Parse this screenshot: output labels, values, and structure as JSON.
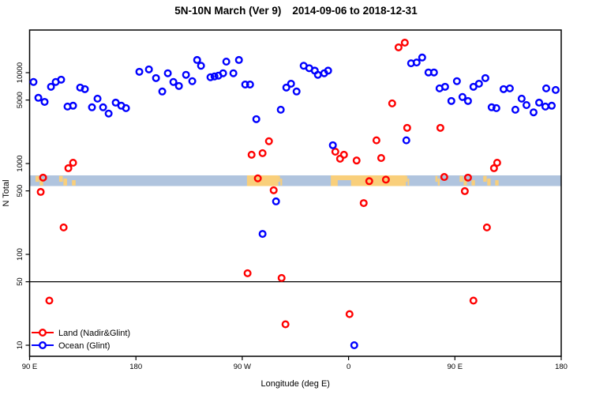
{
  "title": {
    "main": "5N-10N March (Ver 9)",
    "range": "2014-09-06 to 2018-12-31"
  },
  "axes": {
    "x": {
      "label": "Longitude (deg E)",
      "range_deg_e_wrapped": [
        90,
        540
      ],
      "ticks": [
        {
          "value": 90,
          "label": "90 E"
        },
        {
          "value": 180,
          "label": "180"
        },
        {
          "value": 270,
          "label": "90 W"
        },
        {
          "value": 360,
          "label": "0"
        },
        {
          "value": 450,
          "label": "90 E"
        },
        {
          "value": 540,
          "label": "180"
        }
      ]
    },
    "y": {
      "label": "N Total",
      "scale": "log10",
      "range": [
        8,
        25000
      ],
      "ticks": [
        {
          "value": 10,
          "label": "10"
        },
        {
          "value": 50,
          "label": "50"
        },
        {
          "value": 100,
          "label": "100"
        },
        {
          "value": 500,
          "label": "500"
        },
        {
          "value": 1000,
          "label": "1000"
        },
        {
          "value": 5000,
          "label": "5000"
        },
        {
          "value": 10000,
          "label": "10000"
        }
      ]
    }
  },
  "reference_line": {
    "value": 50,
    "color": "#000000"
  },
  "colors": {
    "land": "#FF0000",
    "ocean": "#0000FF",
    "band_ocean": "#B0C4DE",
    "band_land": "#F9CF7B",
    "axis": "#000000"
  },
  "map_band": {
    "description": "latitude-strip land/ocean map drawn across the plot",
    "value_range": [
      565,
      741
    ],
    "segments": [
      {
        "lon": [
          95,
          105.5
        ],
        "type": "speckle"
      },
      {
        "lon": [
          115,
          129.5
        ],
        "type": "speckle"
      },
      {
        "lon": [
          274,
          300.5
        ],
        "type": "solid"
      },
      {
        "lon": [
          300.5,
          304
        ],
        "type": "speckle"
      },
      {
        "lon": [
          345,
          408.5
        ],
        "type": "solid"
      },
      {
        "lon": [
          408.5,
          411.5
        ],
        "type": "speckle"
      },
      {
        "lon": [
          433.5,
          437.5
        ],
        "type": "speckle"
      },
      {
        "lon": [
          454,
          467.5
        ],
        "type": "speckle"
      },
      {
        "lon": [
          474,
          487.5
        ],
        "type": "speckle"
      }
    ],
    "notches": [
      {
        "lon": [
          350.8,
          362.1
        ]
      }
    ]
  },
  "legend": {
    "items": [
      {
        "label": "Land (Nadir&Glint)",
        "series": "land"
      },
      {
        "label": "Ocean (Glint)",
        "series": "ocean"
      }
    ]
  },
  "chart_data": {
    "type": "scatter",
    "title": "5N-10N March (Ver 9)   2014-09-06 to 2018-12-31",
    "xlabel": "Longitude (deg E)",
    "ylabel": "N Total",
    "x_unit": "deg E, wrapped 90..540 (90E-180-90W-0-90E-180)",
    "y_scale": "log10",
    "xlim": [
      90,
      540
    ],
    "ylim": [
      8,
      25000
    ],
    "legend_position": "bottom-left",
    "series": [
      {
        "name": "Land (Nadir&Glint)",
        "key": "land",
        "color": "#FF0000",
        "marker": "open-circle",
        "points": [
          [
            99.4,
            487
          ],
          [
            101.4,
            700
          ],
          [
            106.7,
            31
          ],
          [
            118.8,
            198
          ],
          [
            122.8,
            888
          ],
          [
            126.8,
            1020
          ],
          [
            274.5,
            62
          ],
          [
            277.9,
            1250
          ],
          [
            283.2,
            687
          ],
          [
            287.2,
            1300
          ],
          [
            292.6,
            1760
          ],
          [
            296.6,
            508
          ],
          [
            303.3,
            55
          ],
          [
            306.6,
            17
          ],
          [
            348.8,
            1350
          ],
          [
            352.8,
            1130
          ],
          [
            356.1,
            1250
          ],
          [
            360.8,
            22
          ],
          [
            366.8,
            1080
          ],
          [
            372.8,
            367
          ],
          [
            377.5,
            640
          ],
          [
            383.6,
            1800
          ],
          [
            387.6,
            1150
          ],
          [
            391.6,
            665
          ],
          [
            396.9,
            4590
          ],
          [
            402.3,
            19000
          ],
          [
            407.6,
            21400
          ],
          [
            409.6,
            2470
          ],
          [
            437.7,
            2470
          ],
          [
            441.0,
            711
          ],
          [
            458.4,
            497
          ],
          [
            461.1,
            700
          ],
          [
            465.7,
            31
          ],
          [
            477.1,
            198
          ],
          [
            483.1,
            888
          ],
          [
            485.8,
            1020
          ]
        ]
      },
      {
        "name": "Ocean (Glint)",
        "key": "ocean",
        "color": "#0000FF",
        "marker": "open-circle",
        "points": [
          [
            93.3,
            7900
          ],
          [
            97.4,
            5290
          ],
          [
            102.7,
            4770
          ],
          [
            108.1,
            7000
          ],
          [
            112.1,
            7900
          ],
          [
            116.7,
            8380
          ],
          [
            122.1,
            4240
          ],
          [
            126.8,
            4330
          ],
          [
            132.8,
            6860
          ],
          [
            136.8,
            6590
          ],
          [
            142.8,
            4160
          ],
          [
            147.5,
            5180
          ],
          [
            152.2,
            4160
          ],
          [
            156.9,
            3550
          ],
          [
            162.9,
            4680
          ],
          [
            167.6,
            4330
          ],
          [
            171.6,
            4070
          ],
          [
            182.9,
            10240
          ],
          [
            191.0,
            10870
          ],
          [
            197.0,
            8720
          ],
          [
            202.3,
            6210
          ],
          [
            207.0,
            9860
          ],
          [
            211.7,
            7900
          ],
          [
            216.4,
            7140
          ],
          [
            222.4,
            9470
          ],
          [
            227.7,
            8060
          ],
          [
            231.8,
            13800
          ],
          [
            235.1,
            11920
          ],
          [
            243.1,
            8910
          ],
          [
            246.5,
            9090
          ],
          [
            249.8,
            9280
          ],
          [
            253.8,
            9860
          ],
          [
            256.5,
            13230
          ],
          [
            262.5,
            9860
          ],
          [
            267.2,
            13800
          ],
          [
            272.5,
            7410
          ],
          [
            276.6,
            7410
          ],
          [
            281.9,
            3080
          ],
          [
            287.2,
            168
          ],
          [
            298.6,
            383
          ],
          [
            302.6,
            3910
          ],
          [
            307.3,
            6860
          ],
          [
            311.3,
            7560
          ],
          [
            316.0,
            6210
          ],
          [
            322.0,
            11920
          ],
          [
            326.7,
            11200
          ],
          [
            331.4,
            10530
          ],
          [
            334.0,
            9470
          ],
          [
            339.4,
            9860
          ],
          [
            342.7,
            10530
          ],
          [
            346.7,
            1590
          ],
          [
            364.8,
            10
          ],
          [
            408.9,
            1800
          ],
          [
            412.9,
            12680
          ],
          [
            417.6,
            12940
          ],
          [
            422.3,
            14690
          ],
          [
            427.6,
            10060
          ],
          [
            432.3,
            10060
          ],
          [
            437.0,
            6720
          ],
          [
            441.7,
            7000
          ],
          [
            447.0,
            4880
          ],
          [
            451.7,
            8060
          ],
          [
            456.4,
            5400
          ],
          [
            461.1,
            4880
          ],
          [
            465.7,
            7000
          ],
          [
            470.4,
            7560
          ],
          [
            475.8,
            8720
          ],
          [
            481.1,
            4160
          ],
          [
            485.1,
            4070
          ],
          [
            491.2,
            6590
          ],
          [
            496.5,
            6720
          ],
          [
            501.2,
            3910
          ],
          [
            506.5,
            5180
          ],
          [
            510.6,
            4400
          ],
          [
            516.6,
            3660
          ],
          [
            521.3,
            4680
          ],
          [
            526.6,
            4240
          ],
          [
            527.3,
            6720
          ],
          [
            532.0,
            4330
          ],
          [
            535.3,
            6450
          ]
        ]
      }
    ]
  }
}
